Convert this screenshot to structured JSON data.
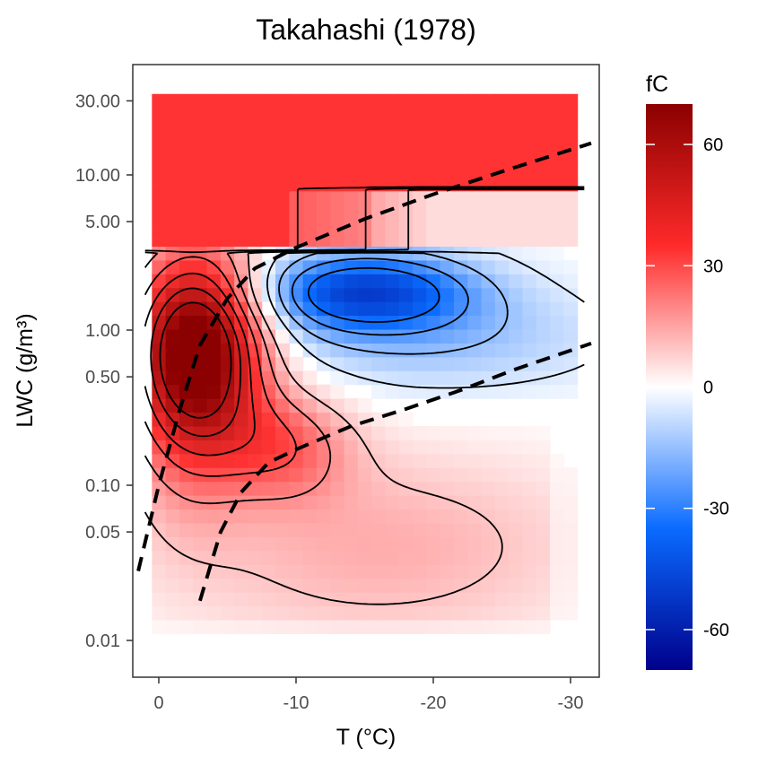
{
  "chart_data": {
    "type": "heatmap",
    "title": "Takahashi (1978)",
    "xlabel": "T (°C)",
    "ylabel": "LWC (g/m³)",
    "x_scale": "reversed",
    "y_scale": "log",
    "xlim": [
      2,
      -32
    ],
    "ylim": [
      0.0063,
      50
    ],
    "x_ticks": [
      0,
      -10,
      -20,
      -30
    ],
    "x_tick_labels": [
      "0",
      "-10",
      "-20",
      "-30"
    ],
    "y_ticks": [
      30,
      10,
      5,
      1,
      0.5,
      0.1,
      0.05,
      0.01
    ],
    "y_tick_labels": [
      "30.00",
      "10.00",
      "5.00",
      "1.00",
      "0.50",
      "0.10",
      "0.05",
      "0.01"
    ],
    "grid": false,
    "legend": {
      "title": "fC",
      "position": "right",
      "ticks": [
        60,
        30,
        0,
        -30,
        -60
      ],
      "tick_labels": [
        "60",
        "30",
        "0",
        "-30",
        "-60"
      ],
      "range": [
        -70,
        70
      ],
      "colors": {
        "low": "#00008b",
        "mid_low": "#0066ff",
        "mid": "#ffffff",
        "mid_high": "#ff3333",
        "high": "#8b0000"
      }
    },
    "field_summary": {
      "grid_T": [
        0,
        -30
      ],
      "grid_LWC": [
        0.01,
        30
      ],
      "max_region": {
        "T": -3,
        "LWC": 0.8,
        "fC": 65
      },
      "min_region": {
        "T": -15,
        "LWC": 1.8,
        "fC": -45
      },
      "high_LWC_value": 30,
      "low_LWC_value": 10
    },
    "contour_levels": [
      10,
      20,
      30,
      40,
      50,
      60,
      -5,
      -15,
      -25,
      -35
    ],
    "dashed_lines": [
      {
        "name": "",
        "points": [
          [
            1.5,
            0.028
          ],
          [
            0,
            0.1
          ],
          [
            -1.5,
            0.3
          ],
          [
            -3,
            0.8
          ],
          [
            -5,
            1.6
          ],
          [
            -7,
            2.5
          ],
          [
            -10,
            3.4
          ],
          [
            -15,
            5.2
          ],
          [
            -20,
            7.5
          ],
          [
            -25,
            10.5
          ],
          [
            -31.5,
            16
          ]
        ]
      },
      {
        "name": "",
        "points": [
          [
            -3,
            0.018
          ],
          [
            -4.5,
            0.05
          ],
          [
            -6,
            0.09
          ],
          [
            -8,
            0.14
          ],
          [
            -10,
            0.17
          ],
          [
            -14,
            0.24
          ],
          [
            -18,
            0.31
          ],
          [
            -22,
            0.41
          ],
          [
            -26,
            0.56
          ],
          [
            -31.5,
            0.82
          ]
        ]
      }
    ]
  }
}
